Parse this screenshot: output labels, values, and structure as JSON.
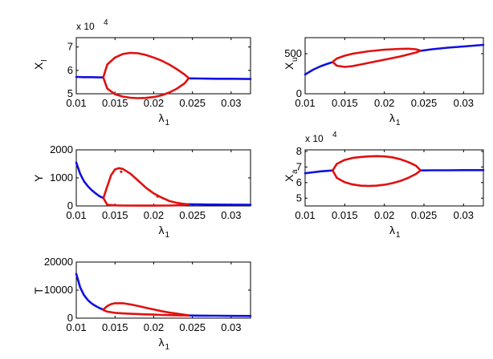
{
  "colors": {
    "stable": "#1010e0",
    "oscillatory": "#e01010",
    "axis": "#000000"
  },
  "chart_data": [
    {
      "id": "XI",
      "type": "line",
      "ylabel": "X",
      "ylabel_sub": "I",
      "xlabel": "λ",
      "xlabel_sub": "1",
      "xlim": [
        0.01,
        0.0325
      ],
      "ylim": [
        5.0,
        7.4
      ],
      "xticks": [
        0.01,
        0.015,
        0.02,
        0.025,
        0.03
      ],
      "xtick_labels": [
        "0.01",
        "0.015",
        "0.02",
        "0.025",
        "0.03"
      ],
      "yticks": [
        5,
        6,
        7
      ],
      "ytick_labels": [
        "5",
        "6",
        "7"
      ],
      "y_exponent_label": "x 10",
      "y_exponent_power": "4",
      "series": [
        {
          "name": "stable-left",
          "color": "stable",
          "x": [
            0.01,
            0.011,
            0.012,
            0.013,
            0.0135
          ],
          "y": [
            5.72,
            5.71,
            5.71,
            5.7,
            5.7
          ]
        },
        {
          "name": "stable-right",
          "color": "stable",
          "x": [
            0.0245,
            0.026,
            0.028,
            0.03,
            0.0325
          ],
          "y": [
            5.66,
            5.65,
            5.64,
            5.64,
            5.63
          ]
        },
        {
          "name": "oscillation-max",
          "color": "oscillatory",
          "x": [
            0.0135,
            0.014,
            0.015,
            0.016,
            0.017,
            0.018,
            0.019,
            0.02,
            0.021,
            0.022,
            0.023,
            0.024,
            0.0245
          ],
          "y": [
            5.72,
            6.25,
            6.55,
            6.7,
            6.75,
            6.73,
            6.66,
            6.55,
            6.42,
            6.25,
            6.05,
            5.82,
            5.68
          ]
        },
        {
          "name": "oscillation-min",
          "color": "oscillatory",
          "x": [
            0.0135,
            0.014,
            0.015,
            0.016,
            0.017,
            0.018,
            0.019,
            0.02,
            0.021,
            0.022,
            0.023,
            0.024,
            0.0245
          ],
          "y": [
            5.68,
            5.22,
            4.98,
            4.88,
            4.83,
            4.81,
            4.82,
            4.86,
            4.93,
            5.05,
            5.22,
            5.45,
            5.66
          ]
        }
      ]
    },
    {
      "id": "Xu",
      "type": "line",
      "ylabel": "X",
      "ylabel_sub": "u",
      "xlabel": "λ",
      "xlabel_sub": "1",
      "xlim": [
        0.01,
        0.0325
      ],
      "ylim": [
        0,
        700
      ],
      "xticks": [
        0.01,
        0.015,
        0.02,
        0.025,
        0.03
      ],
      "xtick_labels": [
        "0.01",
        "0.015",
        "0.02",
        "0.025",
        "0.03"
      ],
      "yticks": [
        0,
        500
      ],
      "ytick_labels": [
        "0",
        "500"
      ],
      "series": [
        {
          "name": "stable-left",
          "color": "stable",
          "x": [
            0.01,
            0.011,
            0.012,
            0.013,
            0.0135
          ],
          "y": [
            240,
            300,
            345,
            380,
            395
          ]
        },
        {
          "name": "stable-right",
          "color": "stable",
          "x": [
            0.0245,
            0.026,
            0.028,
            0.03,
            0.0325
          ],
          "y": [
            535,
            555,
            575,
            590,
            610
          ]
        },
        {
          "name": "oscillation-max",
          "color": "oscillatory",
          "x": [
            0.0135,
            0.014,
            0.015,
            0.016,
            0.017,
            0.018,
            0.019,
            0.02,
            0.021,
            0.022,
            0.023,
            0.024,
            0.0245
          ],
          "y": [
            400,
            440,
            475,
            500,
            515,
            530,
            540,
            550,
            555,
            560,
            562,
            555,
            540
          ]
        },
        {
          "name": "oscillation-min",
          "color": "oscillatory",
          "x": [
            0.0135,
            0.014,
            0.015,
            0.016,
            0.017,
            0.018,
            0.019,
            0.02,
            0.021,
            0.022,
            0.023,
            0.024,
            0.0245
          ],
          "y": [
            395,
            350,
            335,
            345,
            365,
            385,
            405,
            425,
            445,
            465,
            490,
            515,
            535
          ]
        }
      ]
    },
    {
      "id": "Y",
      "type": "line",
      "ylabel": "Y",
      "ylabel_sub": "",
      "xlabel": "λ",
      "xlabel_sub": "1",
      "xlim": [
        0.01,
        0.0325
      ],
      "ylim": [
        0,
        2000
      ],
      "xticks": [
        0.01,
        0.015,
        0.02,
        0.025,
        0.03
      ],
      "xtick_labels": [
        "0.01",
        "0.015",
        "0.02",
        "0.025",
        "0.03"
      ],
      "yticks": [
        0,
        1000,
        2000
      ],
      "ytick_labels": [
        "0",
        "1000",
        "2000"
      ],
      "series": [
        {
          "name": "stable-left",
          "color": "stable",
          "x": [
            0.01,
            0.0105,
            0.011,
            0.0115,
            0.012,
            0.0125,
            0.013,
            0.0135
          ],
          "y": [
            1550,
            1150,
            880,
            700,
            560,
            450,
            350,
            280
          ]
        },
        {
          "name": "stable-right",
          "color": "stable",
          "x": [
            0.0245,
            0.026,
            0.028,
            0.03,
            0.0325
          ],
          "y": [
            60,
            55,
            50,
            45,
            40
          ]
        },
        {
          "name": "oscillation-max",
          "color": "oscillatory",
          "x": [
            0.0135,
            0.014,
            0.0145,
            0.015,
            0.0155,
            0.016,
            0.017,
            0.018,
            0.019,
            0.02,
            0.021,
            0.022,
            0.023,
            0.024,
            0.0245
          ],
          "y": [
            280,
            700,
            1100,
            1300,
            1350,
            1320,
            1150,
            900,
            650,
            450,
            300,
            180,
            110,
            70,
            60
          ]
        },
        {
          "name": "oscillation-min",
          "color": "oscillatory",
          "x": [
            0.0135,
            0.014,
            0.015,
            0.016,
            0.018,
            0.02,
            0.022,
            0.024,
            0.0245
          ],
          "y": [
            280,
            40,
            20,
            15,
            12,
            12,
            15,
            30,
            60
          ]
        },
        {
          "name": "outlier-points",
          "color": "oscillatory",
          "mode": "markers",
          "x": [
            0.0158,
            0.0205
          ],
          "y": [
            1220,
            340
          ]
        }
      ]
    },
    {
      "id": "Xa",
      "type": "line",
      "ylabel": "X",
      "ylabel_sub": "a",
      "xlabel": "λ",
      "xlabel_sub": "1",
      "xlim": [
        0.01,
        0.0325
      ],
      "ylim": [
        4.5,
        8.1
      ],
      "xticks": [
        0.01,
        0.015,
        0.02,
        0.025,
        0.03
      ],
      "xtick_labels": [
        "0.01",
        "0.015",
        "0.02",
        "0.025",
        "0.03"
      ],
      "yticks": [
        5,
        6,
        7,
        8
      ],
      "ytick_labels": [
        "5",
        "6",
        "7",
        "8"
      ],
      "y_exponent_label": "x 10",
      "y_exponent_power": "4",
      "series": [
        {
          "name": "stable-left",
          "color": "stable",
          "x": [
            0.01,
            0.011,
            0.012,
            0.013,
            0.0135
          ],
          "y": [
            6.6,
            6.66,
            6.72,
            6.76,
            6.78
          ]
        },
        {
          "name": "stable-right",
          "color": "stable",
          "x": [
            0.0245,
            0.026,
            0.028,
            0.03,
            0.0325
          ],
          "y": [
            6.78,
            6.79,
            6.79,
            6.8,
            6.8
          ]
        },
        {
          "name": "oscillation-max",
          "color": "oscillatory",
          "x": [
            0.0135,
            0.014,
            0.015,
            0.016,
            0.017,
            0.018,
            0.019,
            0.02,
            0.021,
            0.022,
            0.023,
            0.024,
            0.0245
          ],
          "y": [
            6.8,
            7.2,
            7.45,
            7.58,
            7.64,
            7.68,
            7.7,
            7.68,
            7.62,
            7.5,
            7.32,
            7.08,
            6.82
          ]
        },
        {
          "name": "oscillation-min",
          "color": "oscillatory",
          "x": [
            0.0135,
            0.014,
            0.015,
            0.016,
            0.017,
            0.018,
            0.019,
            0.02,
            0.021,
            0.022,
            0.023,
            0.024,
            0.0245
          ],
          "y": [
            6.76,
            6.3,
            6.02,
            5.88,
            5.8,
            5.78,
            5.8,
            5.86,
            5.96,
            6.1,
            6.3,
            6.55,
            6.76
          ]
        }
      ]
    },
    {
      "id": "T",
      "type": "line",
      "ylabel": "T",
      "ylabel_sub": "",
      "xlabel": "λ",
      "xlabel_sub": "1",
      "xlim": [
        0.01,
        0.0325
      ],
      "ylim": [
        0,
        20000
      ],
      "xticks": [
        0.01,
        0.015,
        0.02,
        0.025,
        0.03
      ],
      "xtick_labels": [
        "0.01",
        "0.015",
        "0.02",
        "0.025",
        "0.03"
      ],
      "yticks": [
        0,
        10000,
        20000
      ],
      "ytick_labels": [
        "0",
        "10000",
        "20000"
      ],
      "series": [
        {
          "name": "stable-left",
          "color": "stable",
          "x": [
            0.01,
            0.0105,
            0.011,
            0.0115,
            0.012,
            0.0125,
            0.013,
            0.0135
          ],
          "y": [
            15800,
            11000,
            8200,
            6400,
            5200,
            4300,
            3600,
            3000
          ]
        },
        {
          "name": "stable-right",
          "color": "stable",
          "x": [
            0.0245,
            0.026,
            0.028,
            0.03,
            0.0325
          ],
          "y": [
            950,
            900,
            850,
            800,
            780
          ]
        },
        {
          "name": "oscillation-max",
          "color": "oscillatory",
          "x": [
            0.0135,
            0.014,
            0.0145,
            0.015,
            0.016,
            0.017,
            0.018,
            0.019,
            0.02,
            0.021,
            0.022,
            0.023,
            0.024,
            0.0245
          ],
          "y": [
            3100,
            4300,
            5000,
            5300,
            5300,
            4900,
            4300,
            3700,
            3100,
            2500,
            2000,
            1600,
            1200,
            1000
          ]
        },
        {
          "name": "oscillation-min",
          "color": "oscillatory",
          "x": [
            0.0135,
            0.014,
            0.015,
            0.016,
            0.017,
            0.018,
            0.019,
            0.02,
            0.021,
            0.022,
            0.023,
            0.024,
            0.0245
          ],
          "y": [
            2900,
            2300,
            1900,
            1700,
            1550,
            1450,
            1350,
            1250,
            1150,
            1080,
            1020,
            980,
            950
          ]
        }
      ]
    }
  ]
}
